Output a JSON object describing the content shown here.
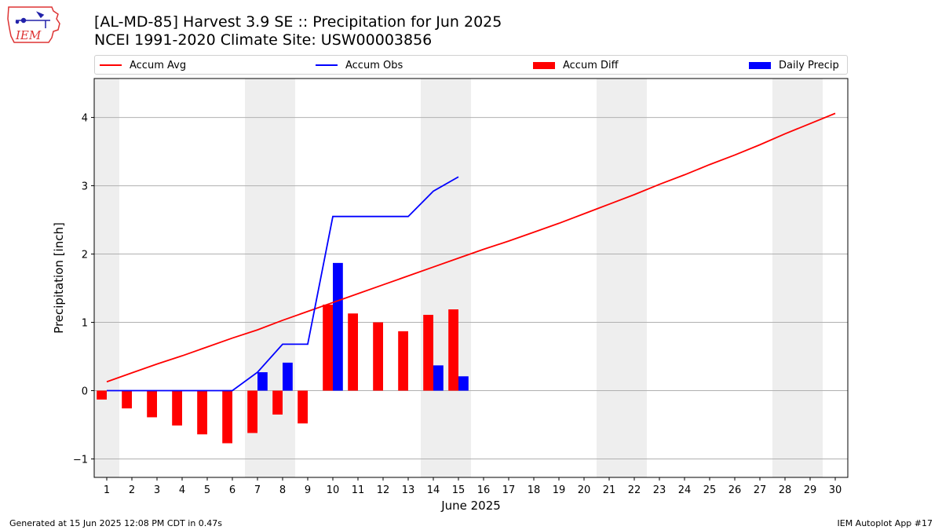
{
  "header": {
    "title_line1": "[AL-MD-85] Harvest 3.9 SE :: Precipitation for Jun 2025",
    "title_line2": "NCEI 1991-2020 Climate Site: USW00003856",
    "logo_text": "IEM"
  },
  "legend": {
    "placement": "top",
    "items": [
      {
        "label": "Accum Avg",
        "kind": "line",
        "color": "#ff0000"
      },
      {
        "label": "Accum Obs",
        "kind": "line",
        "color": "#0000ff"
      },
      {
        "label": "Accum Diff",
        "kind": "bar",
        "color": "#ff0000"
      },
      {
        "label": "Daily Precip",
        "kind": "bar",
        "color": "#0000ff"
      }
    ]
  },
  "footer": {
    "left": "Generated at 15 Jun 2025 12:08 PM CDT in 0.47s",
    "right": "IEM Autoplot App #17"
  },
  "chart_data": {
    "type": "bar",
    "title": "[AL-MD-85] Harvest 3.9 SE :: Precipitation for Jun 2025",
    "subtitle": "NCEI 1991-2020 Climate Site: USW00003856",
    "xlabel": "June 2025",
    "ylabel": "Precipitation [inch]",
    "xlim": [
      0.5,
      30.5
    ],
    "ylim": [
      -1.27,
      4.57
    ],
    "grid": "horizontal",
    "days": [
      1,
      2,
      3,
      4,
      5,
      6,
      7,
      8,
      9,
      10,
      11,
      12,
      13,
      14,
      15,
      16,
      17,
      18,
      19,
      20,
      21,
      22,
      23,
      24,
      25,
      26,
      27,
      28,
      29,
      30
    ],
    "weekend_shading": [
      [
        1,
        1
      ],
      [
        7,
        8
      ],
      [
        14,
        15
      ],
      [
        21,
        22
      ],
      [
        28,
        29
      ]
    ],
    "yticks": [
      -1,
      0,
      1,
      2,
      3,
      4
    ],
    "ytick_labels": [
      "−1",
      "0",
      "1",
      "2",
      "3",
      "4"
    ],
    "series": [
      {
        "name": "Accum Avg",
        "type": "line",
        "color": "#ff0000",
        "x": [
          1,
          2,
          3,
          4,
          5,
          6,
          7,
          8,
          9,
          10,
          11,
          12,
          13,
          14,
          15,
          16,
          17,
          18,
          19,
          20,
          21,
          22,
          23,
          24,
          25,
          26,
          27,
          28,
          29,
          30
        ],
        "values": [
          0.13,
          0.26,
          0.39,
          0.51,
          0.64,
          0.77,
          0.89,
          1.03,
          1.16,
          1.29,
          1.42,
          1.55,
          1.68,
          1.81,
          1.94,
          2.07,
          2.19,
          2.32,
          2.45,
          2.59,
          2.73,
          2.87,
          3.02,
          3.16,
          3.31,
          3.45,
          3.6,
          3.76,
          3.91,
          4.06
        ]
      },
      {
        "name": "Accum Obs",
        "type": "line",
        "color": "#0000ff",
        "x": [
          1,
          2,
          3,
          4,
          5,
          6,
          7,
          8,
          9,
          10,
          11,
          12,
          13,
          14,
          15
        ],
        "values": [
          0,
          0,
          0,
          0,
          0,
          0,
          0.27,
          0.68,
          0.68,
          2.55,
          2.55,
          2.55,
          2.55,
          2.92,
          3.13
        ]
      },
      {
        "name": "Accum Diff",
        "type": "bar",
        "color": "#ff0000",
        "x": [
          1,
          2,
          3,
          4,
          5,
          6,
          7,
          8,
          9,
          10,
          11,
          12,
          13,
          14,
          15
        ],
        "values": [
          -0.13,
          -0.26,
          -0.39,
          -0.51,
          -0.64,
          -0.77,
          -0.62,
          -0.35,
          -0.48,
          1.26,
          1.13,
          1.0,
          0.87,
          1.11,
          1.19
        ]
      },
      {
        "name": "Daily Precip",
        "type": "bar",
        "color": "#0000ff",
        "x": [
          1,
          2,
          3,
          4,
          5,
          6,
          7,
          8,
          9,
          10,
          11,
          12,
          13,
          14,
          15
        ],
        "values": [
          0,
          0,
          0,
          0,
          0,
          0,
          0.27,
          0.41,
          0,
          1.87,
          0,
          0,
          0,
          0.37,
          0.21
        ]
      }
    ]
  }
}
